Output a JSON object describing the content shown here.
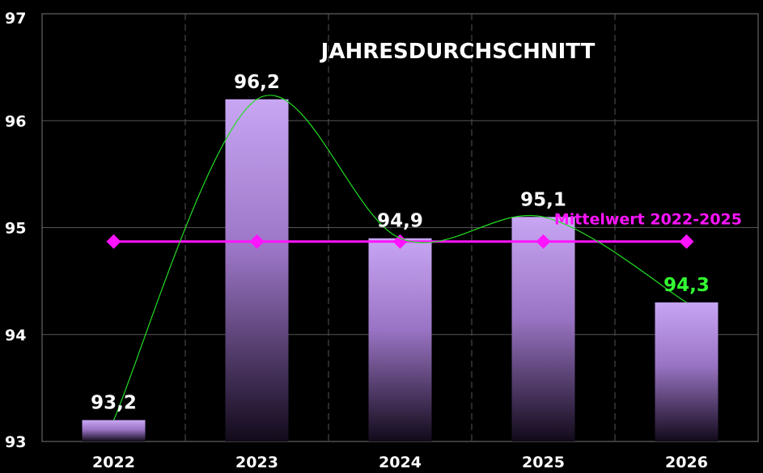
{
  "chart_data": {
    "type": "bar",
    "title": "JAHRESDURCHSCHNITT",
    "categories": [
      "2022",
      "2023",
      "2024",
      "2025",
      "2026"
    ],
    "values": [
      93.2,
      96.2,
      94.9,
      95.1,
      94.3
    ],
    "value_labels": [
      "93,2",
      "96,2",
      "94,9",
      "95,1",
      "94,3"
    ],
    "ylim": [
      93,
      97
    ],
    "yticks": [
      "93",
      "94",
      "95",
      "96",
      "97"
    ],
    "grid": true,
    "xlabel": "",
    "ylabel": "",
    "average_line": {
      "name": "Mittelwert 2022-2025",
      "value": 94.87
    },
    "colors": {
      "background": "#000000",
      "bar_top": "#c8a6f4",
      "bar_bottom": "#120a1a",
      "average": "#ff14ff",
      "trend": "#22dd22",
      "highlight_label": "#33ff33",
      "label": "#ffffff"
    }
  }
}
